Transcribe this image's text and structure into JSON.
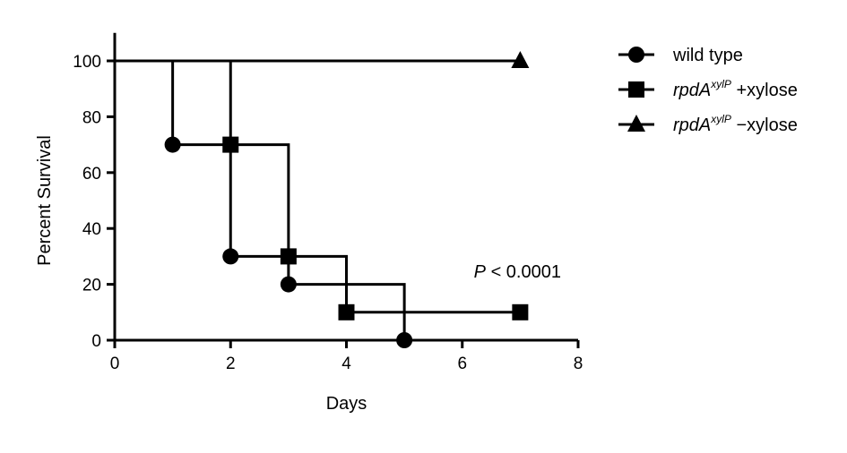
{
  "chart_data": {
    "type": "line",
    "subtype": "kaplan-meier step survival curves",
    "xlabel": "Days",
    "ylabel": "Percent Survival",
    "xlim": [
      0,
      8
    ],
    "ylim": [
      0,
      110
    ],
    "xticks": [
      0,
      2,
      4,
      6,
      8
    ],
    "yticks": [
      0,
      20,
      40,
      60,
      80,
      100
    ],
    "grid": false,
    "legend_position": "top-right",
    "annotation": {
      "prefix": "P",
      "text": " < 0.0001",
      "x": 6.2,
      "y": 25
    },
    "series": [
      {
        "name": "wild type",
        "marker": "circle",
        "color": "#000000",
        "steps": [
          [
            0,
            100
          ],
          [
            1,
            70
          ],
          [
            2,
            30
          ],
          [
            3,
            20
          ],
          [
            5,
            0
          ]
        ],
        "x_end": 5,
        "markers": [
          [
            1,
            70
          ],
          [
            2,
            30
          ],
          [
            3,
            20
          ],
          [
            5,
            0
          ]
        ]
      },
      {
        "name": "rpdA xylP +xylose",
        "label_base": "rpdA",
        "label_sup": "xylP",
        "label_suffix": " +xylose",
        "marker": "square",
        "color": "#000000",
        "steps": [
          [
            0,
            100
          ],
          [
            2,
            70
          ],
          [
            3,
            30
          ],
          [
            4,
            10
          ]
        ],
        "x_end": 7,
        "markers": [
          [
            2,
            70
          ],
          [
            3,
            30
          ],
          [
            4,
            10
          ],
          [
            7,
            10
          ]
        ]
      },
      {
        "name": "rpdA xylP −xylose",
        "label_base": "rpdA",
        "label_sup": "xylP",
        "label_suffix": " −xylose",
        "marker": "triangle",
        "color": "#000000",
        "steps": [
          [
            0,
            100
          ]
        ],
        "x_end": 7,
        "markers": [
          [
            7,
            100
          ]
        ]
      }
    ]
  }
}
